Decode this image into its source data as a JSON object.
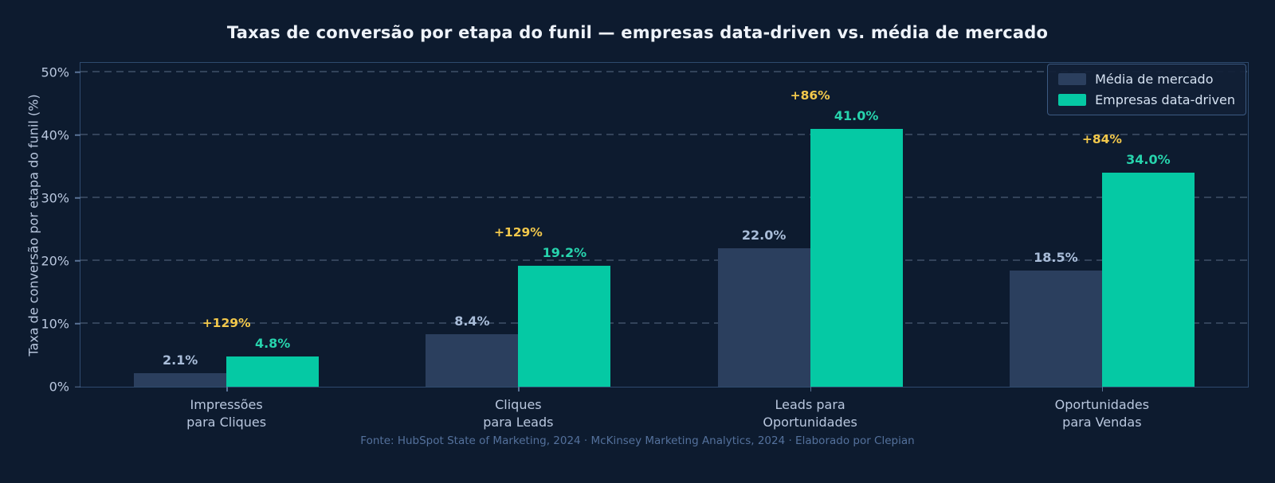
{
  "figure": {
    "title": "Taxas de conversão por etapa do funil — empresas data-driven vs. média de mercado",
    "footer": "Fonte: HubSpot State of Marketing, 2024 · McKinsey Marketing Analytics, 2024 · Elaborado por Clepian"
  },
  "colors": {
    "background": "#0d1b2f",
    "market_bar": "#2b3f5e",
    "datadriven_bar": "#05c9a4",
    "delta_label": "#f2c84b",
    "market_value_label": "#a9bdd9",
    "datadriven_value_label": "#27d4ad",
    "axis_border": "#2e4a6e",
    "tick_text": "#b9c7de",
    "footer_text": "#54719c"
  },
  "chart_data": {
    "type": "bar",
    "title": "Taxas de conversão por etapa do funil — empresas data-driven vs. média de mercado",
    "xlabel": "",
    "ylabel": "Taxa de conversão por etapa do funil (%)",
    "ylim": [
      0,
      51.5
    ],
    "yticks": [
      "0%",
      "10%",
      "20%",
      "30%",
      "40%",
      "50%"
    ],
    "ytick_values": [
      0,
      10,
      20,
      30,
      40,
      50
    ],
    "grid": "horizontal-dashed",
    "legend_position": "top-right",
    "categories": [
      "Impressões\npara Cliques",
      "Cliques\npara Leads",
      "Leads para\nOportunidades",
      "Oportunidades\npara Vendas"
    ],
    "series": [
      {
        "name": "Média de mercado",
        "values": [
          2.1,
          8.4,
          22.0,
          18.5
        ],
        "labels": [
          "2.1%",
          "8.4%",
          "22.0%",
          "18.5%"
        ]
      },
      {
        "name": "Empresas data-driven",
        "values": [
          4.8,
          19.2,
          41.0,
          34.0
        ],
        "labels": [
          "4.8%",
          "19.2%",
          "41.0%",
          "34.0%"
        ]
      }
    ],
    "deltas": [
      "+129%",
      "+129%",
      "+86%",
      "+84%"
    ]
  }
}
